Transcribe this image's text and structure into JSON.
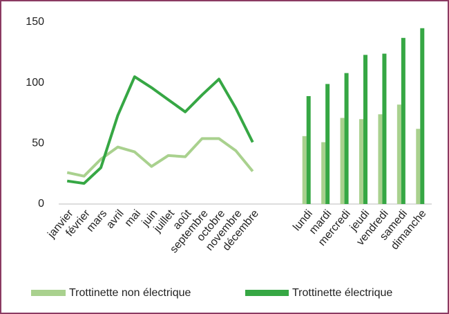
{
  "chart_data": [
    {
      "type": "line",
      "categories": [
        "janvier",
        "février",
        "mars",
        "avril",
        "mai",
        "juin",
        "juillet",
        "août",
        "septembre",
        "octobre",
        "novembre",
        "décembre"
      ],
      "series": [
        {
          "name": "Trottinette non électrique",
          "color": "#a9d18e",
          "values": [
            26,
            23,
            37,
            47,
            43,
            31,
            40,
            39,
            54,
            54,
            44,
            27
          ]
        },
        {
          "name": "Trottinette électrique",
          "color": "#36a744",
          "values": [
            19,
            17,
            30,
            73,
            105,
            96,
            86,
            76,
            90,
            103,
            79,
            51
          ]
        }
      ],
      "ylim": [
        0,
        150
      ],
      "yticks": [
        0,
        50,
        100,
        150
      ],
      "legend": "bottom"
    },
    {
      "type": "bar",
      "categories": [
        "lundi",
        "mardi",
        "mercredi",
        "jeudi",
        "vendredi",
        "samedi",
        "dimanche"
      ],
      "series": [
        {
          "color": "#a9d18e",
          "values": [
            56,
            51,
            71,
            70,
            74,
            82,
            62
          ]
        },
        {
          "color": "#36a744",
          "values": [
            89,
            99,
            108,
            123,
            124,
            137,
            145
          ]
        }
      ],
      "ylim": [
        0,
        150
      ]
    }
  ]
}
